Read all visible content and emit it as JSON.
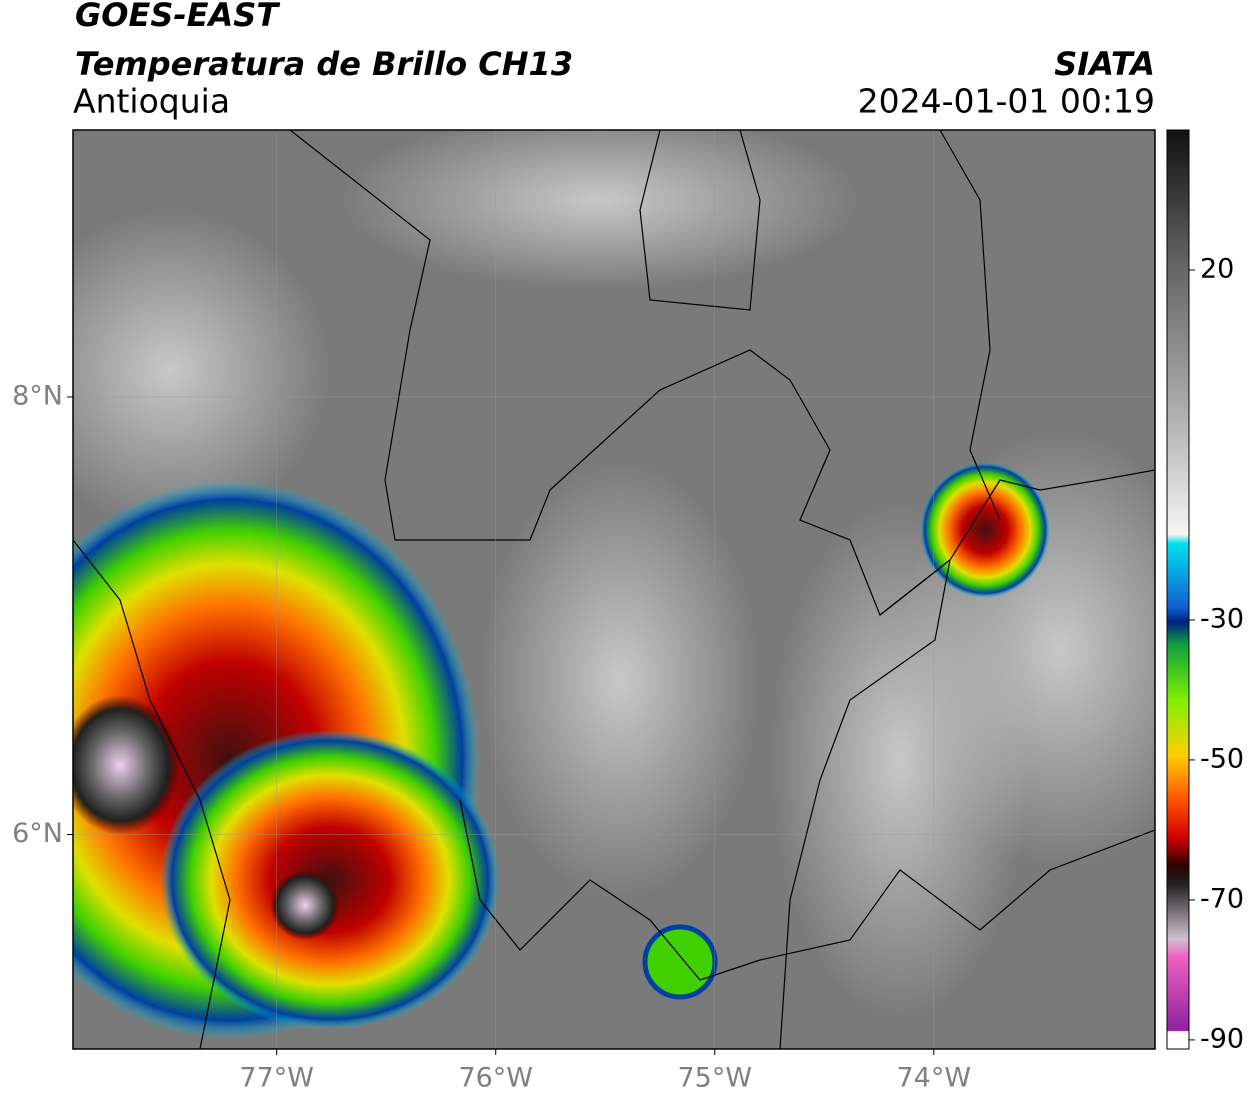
{
  "header": {
    "satellite": "GOES-EAST",
    "product": "Temperatura de Brillo CH13",
    "source": "SIATA",
    "region": "Antioquia",
    "datetime": "2024-01-01 00:19"
  },
  "map": {
    "lonlim": [
      -77.93,
      -72.99
    ],
    "latlim": [
      5.02,
      9.22
    ],
    "xticks": [
      {
        "value": -77,
        "label": "77°W"
      },
      {
        "value": -76,
        "label": "76°W"
      },
      {
        "value": -75,
        "label": "75°W"
      },
      {
        "value": -74,
        "label": "74°W"
      }
    ],
    "yticks": [
      {
        "value": 8,
        "label": "8°N"
      },
      {
        "value": 6,
        "label": "6°N"
      }
    ],
    "grid": true
  },
  "colorbar": {
    "lim": [
      -91.3,
      40
    ],
    "ticks": [
      20,
      -30,
      -50,
      -70,
      -90
    ]
  }
}
